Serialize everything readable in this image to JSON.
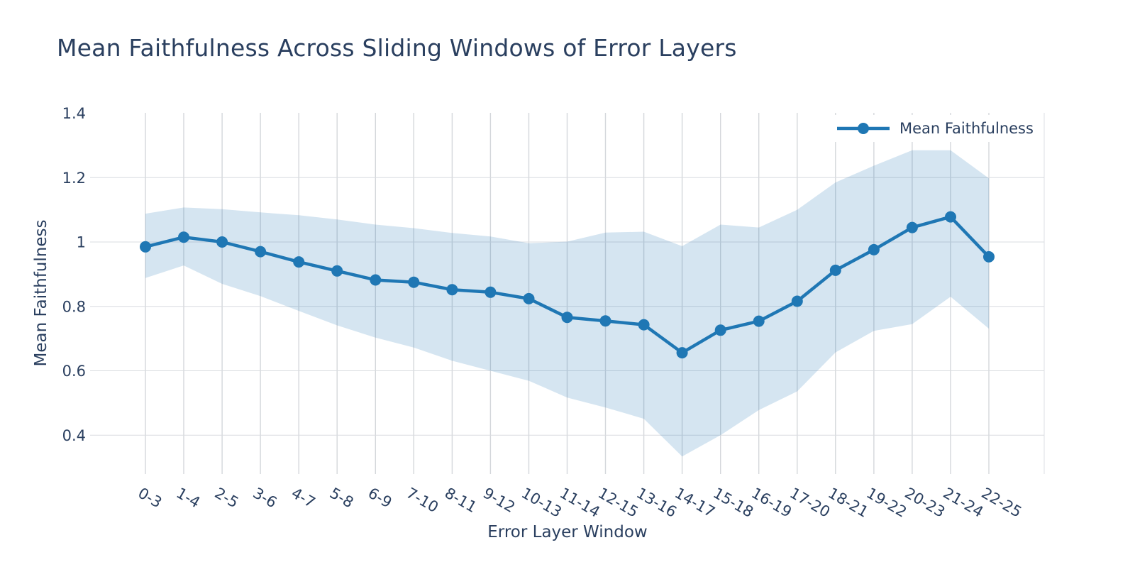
{
  "chart_data": {
    "type": "line",
    "title": "Mean Faithfulness Across Sliding Windows of Error Layers",
    "xlabel": "Error Layer Window",
    "ylabel": "Mean Faithfulness",
    "categories": [
      "0-3",
      "1-4",
      "2-5",
      "3-6",
      "4-7",
      "5-8",
      "6-9",
      "7-10",
      "8-11",
      "9-12",
      "10-13",
      "11-14",
      "12-15",
      "13-16",
      "14-17",
      "15-18",
      "16-19",
      "17-20",
      "18-21",
      "19-22",
      "20-23",
      "21-24",
      "22-25"
    ],
    "series": [
      {
        "name": "Mean Faithfulness",
        "values": [
          0.985,
          1.015,
          1.0,
          0.97,
          0.938,
          0.91,
          0.882,
          0.875,
          0.852,
          0.844,
          0.824,
          0.766,
          0.755,
          0.743,
          0.656,
          0.726,
          0.754,
          0.816,
          0.912,
          0.976,
          1.045,
          1.078,
          0.954
        ]
      }
    ],
    "band": {
      "upper": [
        1.088,
        1.107,
        1.102,
        1.092,
        1.083,
        1.07,
        1.054,
        1.043,
        1.028,
        1.017,
        0.996,
        1.001,
        1.029,
        1.032,
        0.987,
        1.054,
        1.045,
        1.1,
        1.185,
        1.237,
        1.285,
        1.285,
        1.198
      ],
      "lower": [
        0.888,
        0.927,
        0.87,
        0.832,
        0.786,
        0.741,
        0.703,
        0.672,
        0.631,
        0.6,
        0.569,
        0.517,
        0.486,
        0.451,
        0.334,
        0.4,
        0.478,
        0.536,
        0.657,
        0.724,
        0.745,
        0.83,
        0.731
      ]
    },
    "yticks": {
      "values": [
        0.4,
        0.6,
        0.8,
        1,
        1.2,
        1.4
      ],
      "labels": [
        "0.4",
        "0.6",
        "0.8",
        "1",
        "1.2",
        "1.4"
      ]
    },
    "ylim": [
      0.28,
      1.4
    ],
    "xtick_angle_deg": 30,
    "grid": true,
    "legend_position": "top-right-inside",
    "colors": {
      "line": "#1f77b4",
      "band": "rgba(31,119,180,0.19)",
      "grid_vertical": "#d4d7db",
      "grid_horizontal": "#d9dce0",
      "text": "#2a3f5f",
      "background": "#ffffff"
    }
  }
}
